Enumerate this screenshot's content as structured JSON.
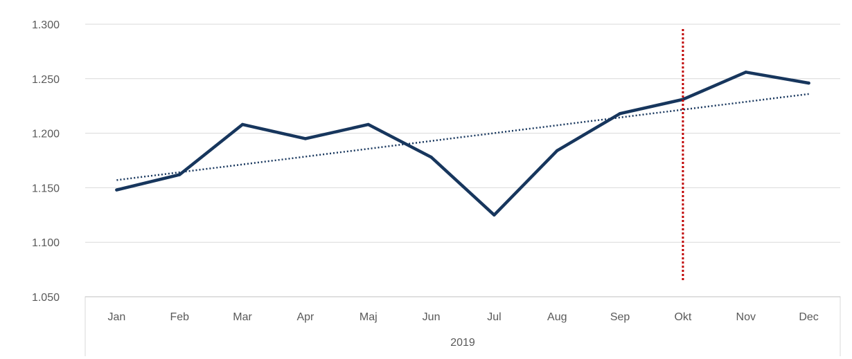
{
  "chart_data": {
    "type": "line",
    "title": "",
    "xlabel": "",
    "ylabel": "",
    "categories": [
      "Jan",
      "Feb",
      "Mar",
      "Apr",
      "Maj",
      "Jun",
      "Jul",
      "Aug",
      "Sep",
      "Okt",
      "Nov",
      "Dec"
    ],
    "group_label": "2019",
    "ylim": [
      1.05,
      1.3
    ],
    "yticks": [
      1.05,
      1.1,
      1.15,
      1.2,
      1.25,
      1.3
    ],
    "ytick_labels": [
      "1.050",
      "1.100",
      "1.150",
      "1.200",
      "1.250",
      "1.300"
    ],
    "grid": true,
    "series": [
      {
        "values": [
          1.148,
          1.162,
          1.208,
          1.195,
          1.208,
          1.178,
          1.125,
          1.184,
          1.218,
          1.231,
          1.256,
          1.246
        ],
        "color": "#17365d",
        "style": "solid"
      }
    ],
    "trendline": {
      "type": "linear",
      "start": 1.157,
      "end": 1.236,
      "color": "#17365d",
      "style": "dotted"
    },
    "marker_line": {
      "category": "Okt",
      "color": "#c00000",
      "style": "dotted"
    }
  }
}
